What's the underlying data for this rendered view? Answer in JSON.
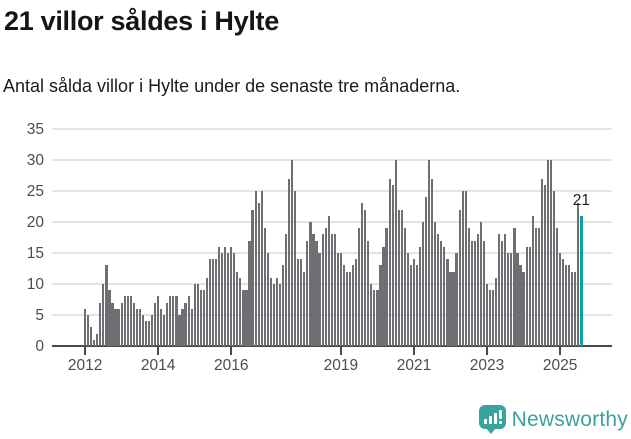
{
  "title": "21 villor såldes i Hylte",
  "subtitle": "Antal sålda villor i Hylte under de senaste tre månaderna.",
  "annotation_last_value": "21",
  "brand": {
    "name": "Newsworthy",
    "logo": "newsworthy-speech-bubble-bar-chart-icon"
  },
  "colors": {
    "bar": "#6f6e73",
    "highlight_bar": "#0aa3a4",
    "brand_teal": "#3aa39d",
    "gridline": "#e4e4e4",
    "axis": "#4a4a4a",
    "axis_text": "#4d4d4d",
    "title_text": "#151515"
  },
  "chart_data": {
    "type": "bar",
    "title": "21 villor såldes i Hylte",
    "subtitle": "Antal sålda villor i Hylte under de senaste tre månaderna.",
    "x_unit": "month",
    "x_start": "2012-01",
    "x_end": "2025-08",
    "ylim": [
      0,
      35
    ],
    "y_ticks": [
      0,
      5,
      10,
      15,
      20,
      25,
      30,
      35
    ],
    "grid": true,
    "legend": false,
    "x_tick_labels": [
      "2012",
      "2014",
      "2016",
      "2019",
      "2021",
      "2023",
      "2025"
    ],
    "x_tick_month_index": [
      0,
      24,
      48,
      84,
      108,
      132,
      156
    ],
    "highlight_last_bar": true,
    "last_value_label": "21",
    "values": [
      6,
      5,
      3,
      1,
      2,
      7,
      10,
      13,
      9,
      7,
      6,
      6,
      7,
      8,
      8,
      8,
      7,
      6,
      6,
      5,
      4,
      4,
      5,
      7,
      8,
      6,
      5,
      7,
      8,
      8,
      8,
      5,
      6,
      7,
      8,
      6,
      10,
      10,
      9,
      9,
      11,
      14,
      14,
      14,
      16,
      15,
      16,
      15,
      16,
      15,
      12,
      11,
      9,
      9,
      17,
      22,
      25,
      23,
      25,
      19,
      15,
      11,
      10,
      11,
      10,
      13,
      18,
      27,
      30,
      25,
      14,
      14,
      12,
      17,
      20,
      18,
      17,
      15,
      18,
      19,
      21,
      18,
      18,
      15,
      15,
      13,
      12,
      12,
      13,
      14,
      19,
      23,
      22,
      17,
      10,
      9,
      9,
      13,
      16,
      19,
      27,
      26,
      30,
      22,
      22,
      19,
      15,
      13,
      14,
      13,
      16,
      20,
      24,
      30,
      27,
      20,
      18,
      17,
      16,
      14,
      12,
      12,
      15,
      22,
      25,
      25,
      19,
      17,
      17,
      18,
      20,
      17,
      10,
      9,
      9,
      11,
      18,
      17,
      18,
      15,
      15,
      19,
      15,
      13,
      12,
      16,
      16,
      21,
      19,
      19,
      27,
      26,
      30,
      30,
      25,
      19,
      15,
      14,
      13,
      13,
      12,
      12,
      23,
      21
    ]
  }
}
